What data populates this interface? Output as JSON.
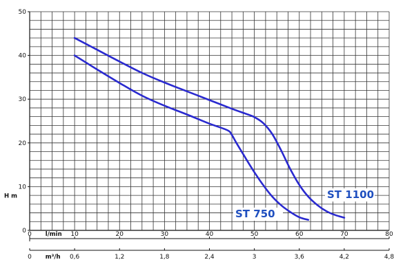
{
  "chart_data": {
    "type": "line",
    "ylabel": "H m",
    "ylim": [
      0,
      50
    ],
    "yticks": [
      "0",
      "10",
      "20",
      "30",
      "40",
      "50"
    ],
    "xlim": [
      0,
      80
    ],
    "x_axis_primary": {
      "unit": "l/min",
      "ticks": [
        "0",
        "10",
        "20",
        "30",
        "40",
        "50",
        "60",
        "70",
        "80"
      ]
    },
    "x_axis_secondary": {
      "unit": "m³/h",
      "ticks": [
        "0",
        "0,6",
        "1,2",
        "1,8",
        "2,4",
        "3",
        "3,6",
        "4,2",
        "4,8"
      ]
    },
    "grid": true,
    "colors": {
      "series": "#2a2acf",
      "label": "#1f4fbf",
      "grid": "#333333"
    },
    "series": [
      {
        "name": "ST 1100",
        "x": [
          10,
          15,
          20,
          25,
          30,
          35,
          40,
          45,
          48,
          50,
          52,
          54,
          56,
          58,
          60,
          62,
          64,
          66,
          68,
          70
        ],
        "y": [
          44,
          41.3,
          38.6,
          36,
          33.8,
          31.8,
          29.8,
          27.8,
          26.7,
          25.9,
          24.5,
          22,
          18.2,
          14,
          10.4,
          7.7,
          5.8,
          4.4,
          3.5,
          2.9
        ]
      },
      {
        "name": "ST 750",
        "x": [
          10,
          15,
          20,
          25,
          30,
          35,
          40,
          44,
          45,
          46,
          48,
          50,
          52,
          54,
          56,
          58,
          60,
          62
        ],
        "y": [
          40,
          36.8,
          33.7,
          30.8,
          28.5,
          26.5,
          24.4,
          22.9,
          21.8,
          20,
          16.6,
          13.3,
          10.3,
          7.7,
          5.7,
          4.2,
          3,
          2.4
        ]
      }
    ]
  }
}
